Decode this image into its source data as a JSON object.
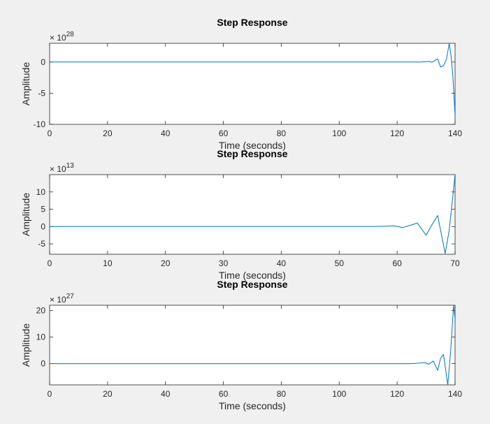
{
  "chart_data": [
    {
      "type": "line",
      "title": "Step Response",
      "xlabel": "Time (seconds)",
      "ylabel": "Amplitude",
      "exponent_label": "× 10",
      "exponent": "28",
      "xlim": [
        0,
        140
      ],
      "ylim": [
        -10,
        3
      ],
      "xticks": [
        0,
        20,
        40,
        60,
        80,
        100,
        120,
        140
      ],
      "yticks": [
        -10,
        -5,
        0
      ],
      "grid": false,
      "color": "#0072bd",
      "series": [
        {
          "x": [
            0,
            125,
            128,
            130,
            131,
            132,
            133,
            134,
            135,
            136,
            137,
            138,
            138.6,
            139.2,
            140
          ],
          "y": [
            0,
            0,
            -0.01,
            0.05,
            0.1,
            -0.05,
            0.25,
            0.5,
            -0.8,
            -0.6,
            0.4,
            3.0,
            1.0,
            -2.0,
            -8.5
          ]
        }
      ]
    },
    {
      "type": "line",
      "title": "Step Response",
      "xlabel": "Time (seconds)",
      "ylabel": "Amplitude",
      "exponent_label": "× 10",
      "exponent": "13",
      "xlim": [
        0,
        70
      ],
      "ylim": [
        -8,
        15
      ],
      "xticks": [
        0,
        10,
        20,
        30,
        40,
        50,
        60,
        70
      ],
      "yticks": [
        -5,
        0,
        5,
        10
      ],
      "grid": false,
      "color": "#0072bd",
      "series": [
        {
          "x": [
            0,
            56,
            58,
            59.5,
            61,
            62.5,
            63.5,
            65,
            66,
            67,
            68.3,
            69,
            70
          ],
          "y": [
            0,
            0,
            0.1,
            0.2,
            -0.3,
            0.5,
            1.0,
            -2.5,
            0.5,
            3.2,
            -7.8,
            -1.0,
            15
          ]
        }
      ]
    },
    {
      "type": "line",
      "title": "Step Response",
      "xlabel": "Time (seconds)",
      "ylabel": "Amplitude",
      "exponent_label": "× 10",
      "exponent": "27",
      "xlim": [
        0,
        140
      ],
      "ylim": [
        -8,
        22
      ],
      "xticks": [
        0,
        20,
        40,
        60,
        80,
        100,
        120,
        140
      ],
      "yticks": [
        0,
        10,
        20
      ],
      "grid": false,
      "color": "#0072bd",
      "series": [
        {
          "x": [
            0,
            125,
            128,
            129.5,
            131,
            132.5,
            134,
            135,
            136,
            137.5,
            138.5,
            139.5,
            140
          ],
          "y": [
            0,
            0,
            0.2,
            0.4,
            -0.2,
            1.0,
            -2.5,
            2.0,
            3.5,
            -8,
            5,
            22,
            17
          ]
        }
      ]
    }
  ]
}
